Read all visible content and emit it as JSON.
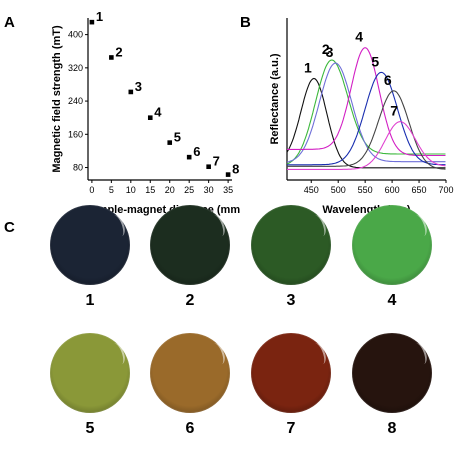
{
  "panels": {
    "a": "A",
    "b": "B",
    "c": "C"
  },
  "chart_data": [
    {
      "type": "scatter",
      "xlabel": "Sample-magnet distance (mm)",
      "ylabel": "Magnetic field strength (mT)",
      "xlim": [
        -1,
        36
      ],
      "ylim": [
        50,
        440
      ],
      "x_ticks": [
        0,
        5,
        10,
        15,
        20,
        25,
        30,
        35
      ],
      "y_ticks": [
        80,
        160,
        240,
        320,
        400
      ],
      "points": [
        {
          "label": "1",
          "x": 0,
          "y": 430
        },
        {
          "label": "2",
          "x": 5,
          "y": 345
        },
        {
          "label": "3",
          "x": 10,
          "y": 262
        },
        {
          "label": "4",
          "x": 15,
          "y": 200
        },
        {
          "label": "5",
          "x": 20,
          "y": 140
        },
        {
          "label": "6",
          "x": 25,
          "y": 105
        },
        {
          "label": "7",
          "x": 30,
          "y": 82
        },
        {
          "label": "8",
          "x": 35,
          "y": 63
        }
      ],
      "grid": false
    },
    {
      "type": "line",
      "xlabel": "Wavelength (nm)",
      "ylabel": "Reflectance (a.u.)",
      "xlim": [
        405,
        700
      ],
      "x_ticks": [
        450,
        500,
        550,
        600,
        650,
        700
      ],
      "y_ticks": [],
      "series": [
        {
          "label": "1",
          "color": "#111111",
          "peak": 455,
          "width": 24,
          "height": 0.62,
          "base_left": 0.08,
          "base_right": 0.04
        },
        {
          "label": "2",
          "color": "#3cb83c",
          "peak": 488,
          "width": 30,
          "height": 0.74,
          "base_left": 0.05,
          "base_right": 0.13
        },
        {
          "label": "3",
          "color": "#6f6fd8",
          "peak": 495,
          "width": 30,
          "height": 0.72,
          "base_left": 0.07,
          "base_right": 0.08
        },
        {
          "label": "4",
          "color": "#d21fc4",
          "peak": 550,
          "width": 26,
          "height": 0.82,
          "base_left": 0.16,
          "base_right": 0.12
        },
        {
          "label": "5",
          "color": "#1a2fb0",
          "peak": 580,
          "width": 30,
          "height": 0.66,
          "base_left": 0.06,
          "base_right": 0.06
        },
        {
          "label": "6",
          "color": "#444444",
          "peak": 603,
          "width": 28,
          "height": 0.54,
          "base_left": 0.05,
          "base_right": 0.03
        },
        {
          "label": "7",
          "color": "#e042d0",
          "peak": 615,
          "width": 28,
          "height": 0.34,
          "base_left": 0.03,
          "base_right": 0.05
        }
      ],
      "grid": false
    }
  ],
  "samples": [
    {
      "label": "1",
      "color": "#1b2434",
      "edge": "#0b0f18"
    },
    {
      "label": "2",
      "color": "#1c2d1f",
      "edge": "#0d150f"
    },
    {
      "label": "3",
      "color": "#2c5a25",
      "edge": "#142a12"
    },
    {
      "label": "4",
      "color": "#4aa848",
      "edge": "#234f22"
    },
    {
      "label": "5",
      "color": "#8a9838",
      "edge": "#3f4719"
    },
    {
      "label": "6",
      "color": "#9a6a2a",
      "edge": "#483114"
    },
    {
      "label": "7",
      "color": "#7a2410",
      "edge": "#2e0c06"
    },
    {
      "label": "8",
      "color": "#26140e",
      "edge": "#0c0604"
    }
  ]
}
